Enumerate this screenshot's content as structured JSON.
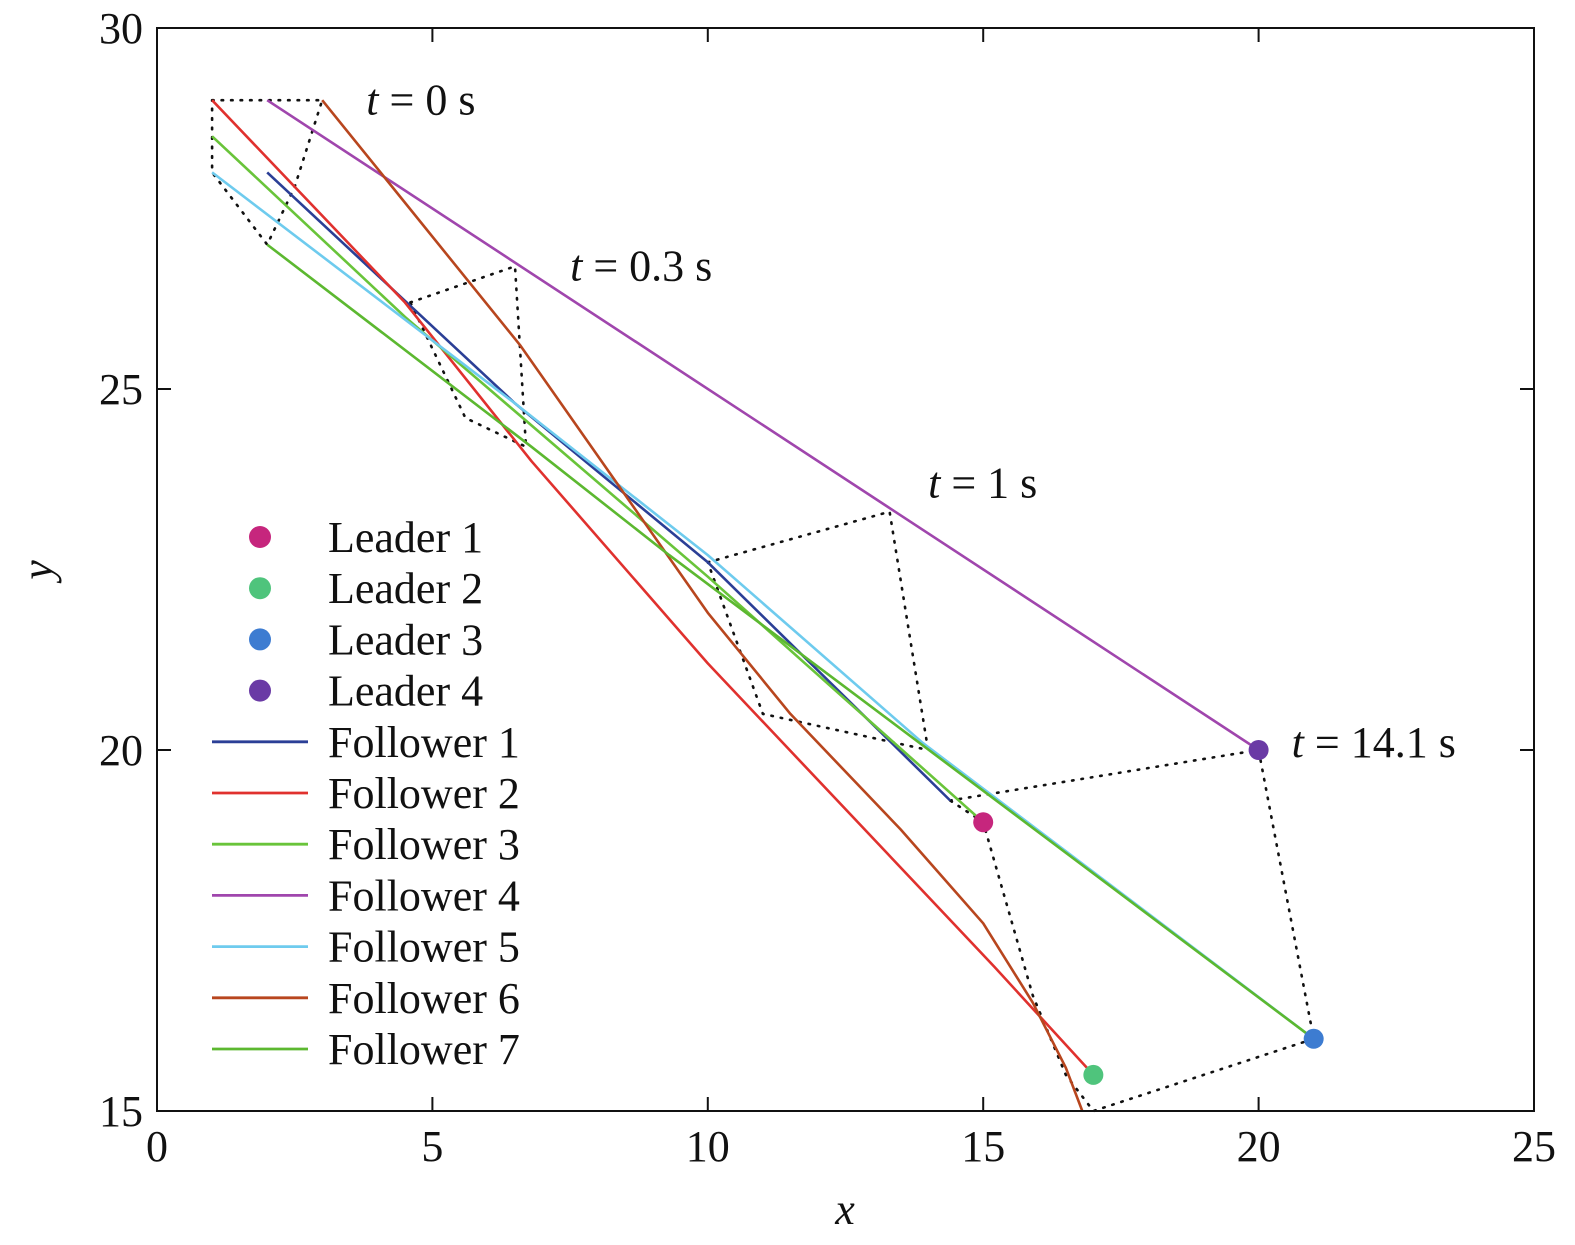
{
  "chart_data": {
    "type": "line",
    "xlabel": "x",
    "ylabel": "y",
    "xlim": [
      0,
      25
    ],
    "ylim": [
      15,
      30
    ],
    "xticks": [
      "0",
      "5",
      "10",
      "15",
      "20",
      "25"
    ],
    "yticks": [
      "15",
      "20",
      "25",
      "30"
    ],
    "grid": false,
    "legend_position": "left-bottom",
    "leaders": [
      {
        "name": "Leader 1",
        "color": "#c6267d",
        "x": 15,
        "y": 19
      },
      {
        "name": "Leader 2",
        "color": "#4fc47c",
        "x": 17,
        "y": 15.5
      },
      {
        "name": "Leader 3",
        "color": "#3d7cd1",
        "x": 21,
        "y": 16
      },
      {
        "name": "Leader 4",
        "color": "#6a3aa5",
        "x": 20,
        "y": 20
      }
    ],
    "series": [
      {
        "name": "Follower 1",
        "color": "#2b3f96",
        "points": [
          [
            2,
            28
          ],
          [
            6.5,
            24.8
          ],
          [
            10,
            22.6
          ],
          [
            14.4,
            19.3
          ]
        ]
      },
      {
        "name": "Follower 2",
        "color": "#e0312e",
        "points": [
          [
            1,
            29
          ],
          [
            4.5,
            26.2
          ],
          [
            6.8,
            24
          ],
          [
            10,
            21.2
          ],
          [
            15.2,
            17
          ],
          [
            17,
            15.5
          ]
        ]
      },
      {
        "name": "Follower 3",
        "color": "#69c43a",
        "points": [
          [
            1,
            28.5
          ],
          [
            4.5,
            26
          ],
          [
            10,
            22.4
          ],
          [
            15,
            19
          ]
        ]
      },
      {
        "name": "Follower 4",
        "color": "#a046ad",
        "points": [
          [
            2,
            29
          ],
          [
            13.4,
            23.3
          ],
          [
            20,
            20
          ]
        ]
      },
      {
        "name": "Follower 5",
        "color": "#6ecbee",
        "points": [
          [
            1,
            28
          ],
          [
            6.5,
            24.8
          ],
          [
            10,
            22.7
          ],
          [
            13.9,
            20.1
          ],
          [
            21,
            16
          ]
        ]
      },
      {
        "name": "Follower 6",
        "color": "#b8461e",
        "points": [
          [
            3,
            29
          ],
          [
            6.6,
            25.6
          ],
          [
            10,
            21.9
          ],
          [
            11.5,
            20.5
          ],
          [
            13.5,
            18.9
          ],
          [
            15,
            17.6
          ],
          [
            15.9,
            16.5
          ],
          [
            16.5,
            15.6
          ],
          [
            16.8,
            15
          ]
        ]
      },
      {
        "name": "Follower 7",
        "color": "#5cb830",
        "points": [
          [
            2,
            27
          ],
          [
            6.8,
            24.2
          ],
          [
            9.3,
            22.7
          ],
          [
            21,
            16
          ]
        ]
      }
    ],
    "formations": [
      {
        "points": [
          [
            1,
            29
          ],
          [
            2,
            29
          ],
          [
            3,
            29
          ],
          [
            2.5,
            27.8
          ],
          [
            2,
            27
          ],
          [
            1,
            28
          ],
          [
            1,
            28.5
          ],
          [
            1,
            29
          ]
        ]
      },
      {
        "points": [
          [
            4.6,
            26.2
          ],
          [
            6.5,
            26.7
          ],
          [
            6.7,
            24.2
          ],
          [
            5.6,
            24.6
          ],
          [
            4.6,
            26.2
          ]
        ]
      },
      {
        "points": [
          [
            10,
            22.6
          ],
          [
            13.3,
            23.3
          ],
          [
            14,
            20
          ],
          [
            11,
            20.5
          ],
          [
            10,
            22.6
          ]
        ]
      },
      {
        "points": [
          [
            14.4,
            19.3
          ],
          [
            20,
            20
          ],
          [
            21,
            16
          ],
          [
            17,
            15
          ],
          [
            16.5,
            15.5
          ],
          [
            15.9,
            16.6
          ],
          [
            15,
            19
          ],
          [
            14.4,
            19.3
          ]
        ]
      }
    ],
    "annotations": [
      {
        "var": "t",
        "rest": " = 0 s",
        "x": 3.8,
        "y": 28.8
      },
      {
        "var": "t",
        "rest": " = 0.3 s",
        "x": 7.5,
        "y": 26.5
      },
      {
        "var": "t",
        "rest": " = 1 s",
        "x": 14,
        "y": 23.5
      },
      {
        "var": "t",
        "rest": " = 14.1 s",
        "x": 20.6,
        "y": 19.9
      }
    ]
  }
}
